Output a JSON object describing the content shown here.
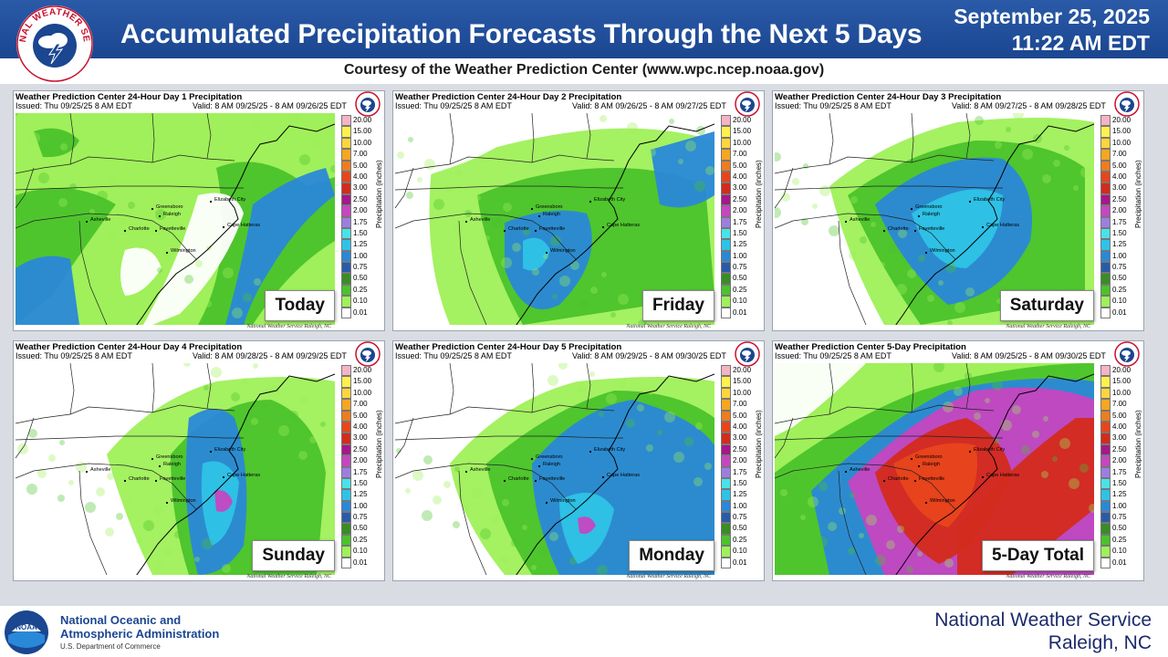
{
  "header": {
    "title": "Accumulated Precipitation Forecasts Through the Next 5 Days",
    "date": "September 25, 2025",
    "time": "11:22 AM EDT",
    "logo_text": "NATIONAL WEATHER SERVICE",
    "subtitle": "Courtesy of the Weather Prediction Center (www.wpc.ncep.noaa.gov)"
  },
  "legend": {
    "unit": "Precipitation (inches)",
    "values": [
      "20.00",
      "15.00",
      "10.00",
      "7.00",
      "5.00",
      "4.00",
      "3.00",
      "2.50",
      "2.00",
      "1.75",
      "1.50",
      "1.25",
      "1.00",
      "0.75",
      "0.50",
      "0.25",
      "0.10",
      "0.01"
    ],
    "colors": [
      "#f5b3c6",
      "#fff14c",
      "#fed53e",
      "#f5a623",
      "#ed7d1e",
      "#e8451b",
      "#d32b1c",
      "#a6178a",
      "#c646c0",
      "#9d7ee0",
      "#4ae2e8",
      "#2ec3e6",
      "#2a88d8",
      "#2a5ba8",
      "#3a8c27",
      "#4bc22b",
      "#9ff05a",
      "#ffffff"
    ]
  },
  "cities": [
    "Greensboro",
    "Raleigh",
    "Asheville",
    "Charlotte",
    "Fayetteville",
    "Wilmington",
    "Elizabeth City",
    "Cape Hatteras"
  ],
  "panels": [
    {
      "title": "Weather Prediction Center 24-Hour Day 1 Precipitation",
      "issued": "Issued: Thu 09/25/25 8 AM EDT",
      "valid": "Valid: 8 AM 09/25/25 - 8 AM 09/26/25 EDT",
      "label": "Today",
      "credit": "National Weather Service Raleigh, NC"
    },
    {
      "title": "Weather Prediction Center 24-Hour Day 2 Precipitation",
      "issued": "Issued: Thu 09/25/25 8 AM EDT",
      "valid": "Valid: 8 AM 09/26/25 - 8 AM 09/27/25 EDT",
      "label": "Friday",
      "credit": "National Weather Service Raleigh, NC"
    },
    {
      "title": "Weather Prediction Center 24-Hour Day 3 Precipitation",
      "issued": "Issued: Thu 09/25/25 8 AM EDT",
      "valid": "Valid: 8 AM 09/27/25 - 8 AM 09/28/25 EDT",
      "label": "Saturday",
      "credit": "National Weather Service Raleigh, NC"
    },
    {
      "title": "Weather Prediction Center 24-Hour Day 4 Precipitation",
      "issued": "Issued: Thu 09/25/25 8 AM EDT",
      "valid": "Valid: 8 AM 09/28/25 - 8 AM 09/29/25 EDT",
      "label": "Sunday",
      "credit": "National Weather Service Raleigh, NC"
    },
    {
      "title": "Weather Prediction Center 24-Hour Day 5 Precipitation",
      "issued": "Issued: Thu 09/25/25 8 AM EDT",
      "valid": "Valid: 8 AM 09/29/25 - 8 AM 09/30/25 EDT",
      "label": "Monday",
      "credit": "National Weather Service Raleigh, NC"
    },
    {
      "title": "Weather Prediction Center 5-Day Precipitation",
      "issued": "Issued: Thu 09/25/25 8 AM EDT",
      "valid": "Valid: 8 AM 09/25/25 - 8 AM 09/30/25 EDT",
      "label": "5-Day Total",
      "credit": "National Weather Service Raleigh, NC"
    }
  ],
  "footer": {
    "noaa_line1": "National Oceanic and",
    "noaa_line2": "Atmospheric Administration",
    "noaa_dept": "U.S. Department of Commerce",
    "noaa_logo_text": "NOAA",
    "nws_name": "National Weather Service",
    "nws_office": "Raleigh, NC"
  }
}
